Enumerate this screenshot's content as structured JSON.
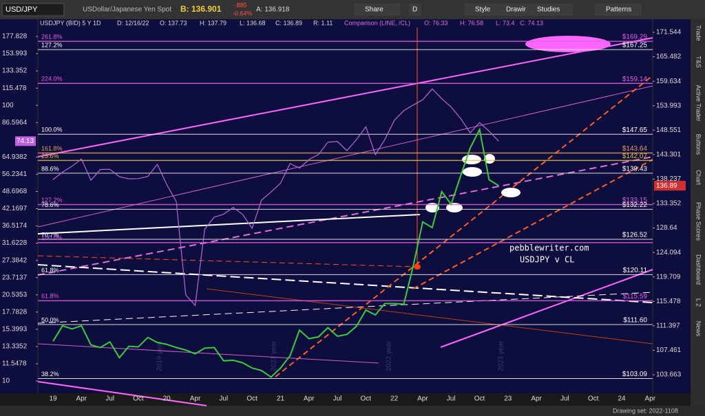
{
  "toolbar": {
    "symbol": "USD/JPY",
    "description": "USDollar/Japanese Yen Spot",
    "bid": "B: 136.901",
    "change": "-.885",
    "change_pct": "-0.64%",
    "ask": "A: 136.918",
    "buttons": [
      "Share",
      "D",
      "Style",
      "Drawings",
      "Studies",
      "Patterns"
    ]
  },
  "chart": {
    "header": [
      "USDJPY (BID) 5 Y 1D",
      "D: 12/16/22",
      "O: 137.73",
      "H: 137.79",
      "L: 136.68",
      "C: 136.89",
      "R: 1.11"
    ],
    "comparison": [
      "Comparison (LINE, /CL)",
      "O: 76.33",
      "H: 76.58",
      "L: 73.4",
      "C: 74.13"
    ],
    "right_ticks": [
      171.544,
      165.482,
      159.634,
      153.993,
      148.551,
      143.301,
      138.237,
      133.352,
      128.64,
      124.094,
      119.709,
      115.478,
      111.397,
      107.461,
      103.663
    ],
    "left_ticks": [
      177.828,
      153.993,
      133.352,
      115.478,
      100,
      86.5964,
      64.9382,
      56.2341,
      48.6968,
      42.1697,
      36.5174,
      31.6228,
      27.3842,
      23.7137,
      20.5353,
      17.7828,
      15.3993,
      13.3352,
      11.5478,
      10
    ],
    "last_price": 136.89,
    "last_comparison": 74.13,
    "x_labels": [
      "19",
      "Apr",
      "Jul",
      "Oct",
      "20",
      "Apr",
      "Jul",
      "Oct",
      "21",
      "Apr",
      "Jul",
      "Oct",
      "22",
      "Apr",
      "Jul",
      "Oct",
      "23",
      "Apr",
      "Jul",
      "Oct",
      "24",
      "Apr"
    ],
    "fib_levels": [
      {
        "pct": "261.8%",
        "value": 169.29,
        "price": "$169.29",
        "color": "#e060e0"
      },
      {
        "pct": "127.2%",
        "value": 167.25,
        "price": "$167.25",
        "color": "#ffffff"
      },
      {
        "pct": "224.0%",
        "value": 159.14,
        "price": "$159.14",
        "color": "#e060e0"
      },
      {
        "pct": "100.0%",
        "value": 147.65,
        "price": "$147.65",
        "color": "#ffffff"
      },
      {
        "pct": "161.8%",
        "value": 143.64,
        "price": "$143.64",
        "color": "#e0a060"
      },
      {
        "pct": "23.6%",
        "value": 142.07,
        "price": "$142.07",
        "color": "#e0c040"
      },
      {
        "pct": "88.6%",
        "value": 139.43,
        "price": "$139.43",
        "color": "#ffffff"
      },
      {
        "pct": "127.2%",
        "value": 133.15,
        "price": "$133.15",
        "color": "#e060e0"
      },
      {
        "pct": "78.6%",
        "value": 132.22,
        "price": "$132.22",
        "color": "#ffffff"
      },
      {
        "pct": "70.7%",
        "value": 126.52,
        "price": "$126.52",
        "color": "#ffffff"
      },
      {
        "pct": "100.0%",
        "value": 125.9,
        "color": "#e060e0"
      },
      {
        "pct": "61.8%",
        "value": 120.11,
        "price": "$120.11",
        "color": "#ffffff"
      },
      {
        "pct": "61.8%",
        "value": 115.59,
        "price": "$115.59",
        "color": "#e060e0"
      },
      {
        "pct": "50.0%",
        "value": 111.6,
        "price": "$111.60",
        "color": "#ffffff"
      },
      {
        "pct": "38.2%",
        "value": 103.09,
        "price": "$103.09",
        "color": "#ffffff"
      }
    ],
    "series": [
      {
        "name": "USDJPY",
        "color": "#3ccc3c",
        "scale": "right",
        "values": [
          108.9,
          111.4,
          110.9,
          111.4,
          108.3,
          107.9,
          108.8,
          106.3,
          108.1,
          108.0,
          109.5,
          108.7,
          108.4,
          107.9,
          107.5,
          106.9,
          107.8,
          107.9,
          105.8,
          105.9,
          105.5,
          104.7,
          104.3,
          103.3,
          104.7,
          106.6,
          110.7,
          109.3,
          109.6,
          111.1,
          109.7,
          110.0,
          111.3,
          114.0,
          113.2,
          115.1,
          115.1,
          115.0,
          121.7,
          129.8,
          128.7,
          135.7,
          133.2,
          138.9,
          144.7,
          148.7,
          138.1,
          136.9
        ]
      },
      {
        "name": "/CL",
        "color": "#b868d8",
        "scale": "left",
        "values": [
          53.8,
          57.2,
          60.1,
          63.9,
          53.5,
          58.5,
          58.6,
          55.1,
          54.1,
          54.2,
          55.2,
          61.1,
          51.6,
          44.8,
          20.5,
          18.8,
          35.5,
          39.3,
          40.3,
          42.6,
          40.2,
          35.8,
          45.3,
          48.5,
          52.2,
          61.5,
          59.2,
          63.6,
          66.3,
          73.5,
          73.9,
          68.5,
          75.0,
          83.6,
          66.2,
          75.2,
          88.2,
          95.7,
          100.3,
          104.7,
          114.7,
          105.8,
          98.6,
          89.6,
          79.5,
          86.5,
          80.6,
          74.13
        ]
      }
    ],
    "annotations": [
      "pebblewriter.com",
      "USDJPY v CL"
    ],
    "watermarks": [
      "2019 year",
      "2021 year",
      "2022 year",
      "2023 year"
    ]
  },
  "side_tabs": [
    "Trade",
    "T&S",
    "Active Trader",
    "Buttons",
    "Chart",
    "Phase Scores",
    "Dashboard",
    "L 2",
    "News"
  ],
  "status": "Drawing set: 2022-1108"
}
